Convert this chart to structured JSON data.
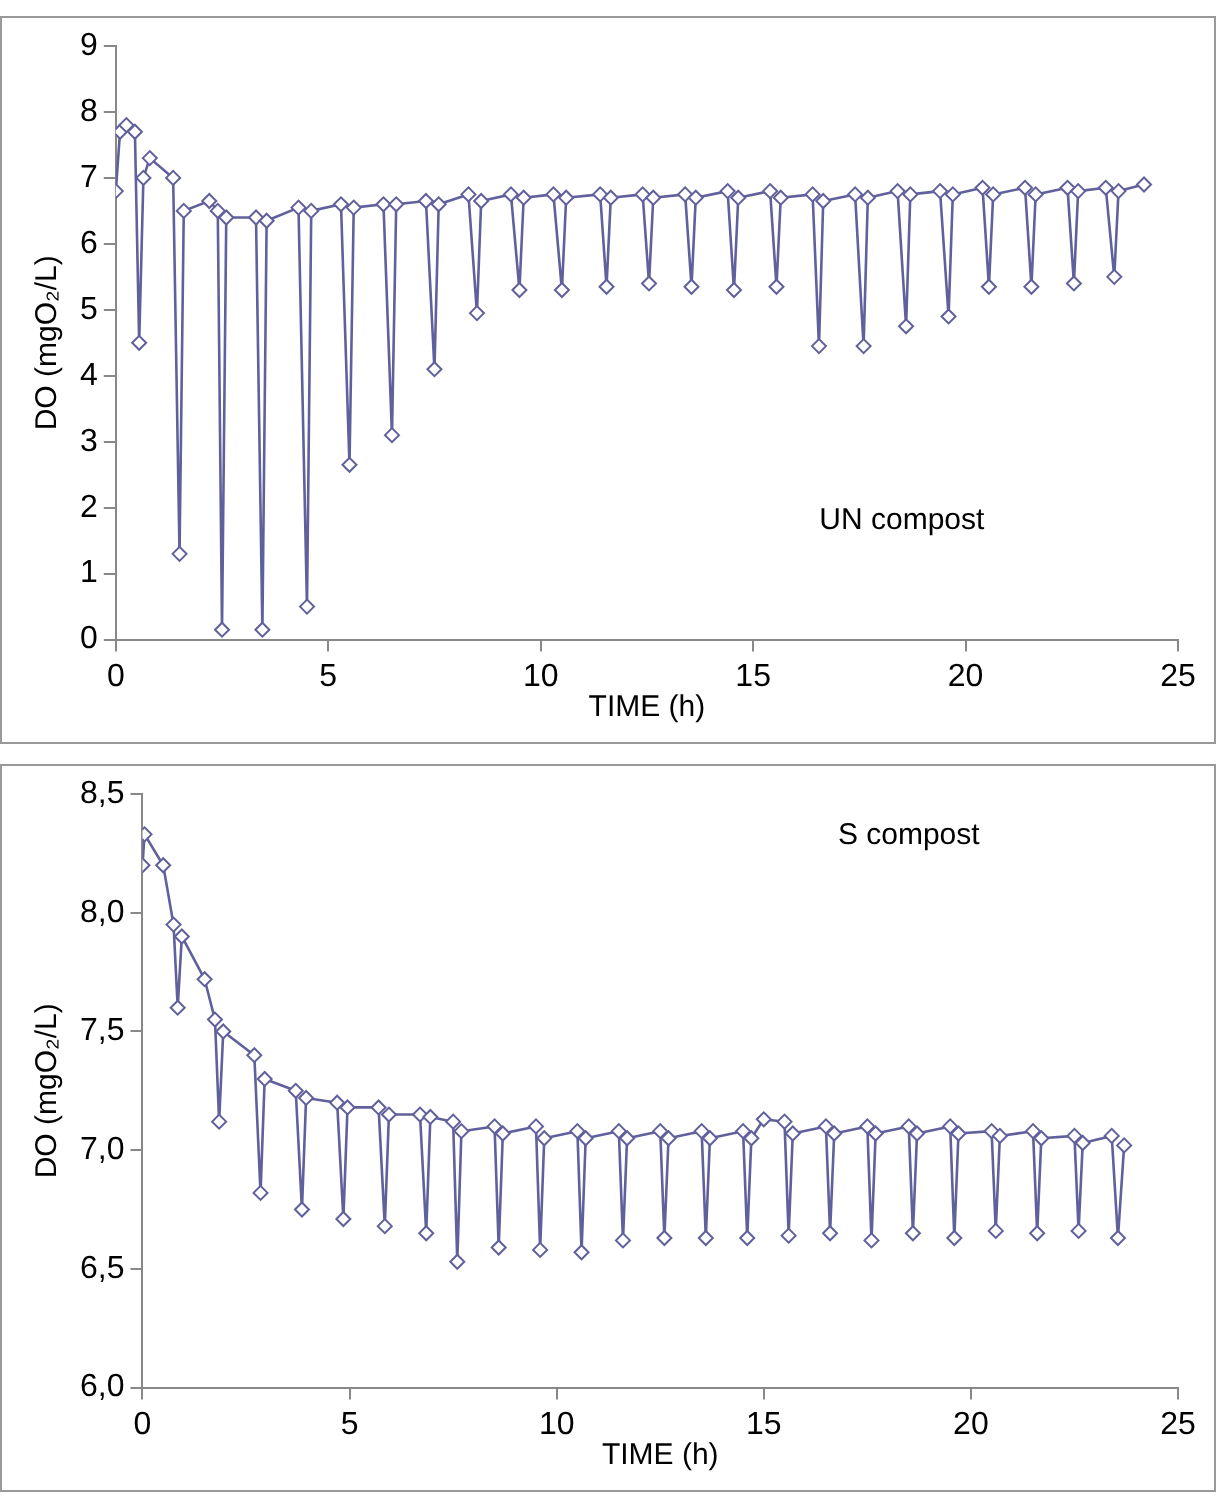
{
  "chart_data": [
    {
      "type": "line",
      "xlabel": "TIME (h)",
      "ylabel": "DO (mgO₂/L)",
      "xlim": [
        0,
        25
      ],
      "xticks": [
        0,
        5,
        10,
        15,
        20,
        25
      ],
      "ylim": [
        0,
        9
      ],
      "yticks": [
        0,
        1,
        2,
        3,
        4,
        5,
        6,
        7,
        8,
        9
      ],
      "grid": false,
      "legend": false,
      "marker": "diamond",
      "line_style": "solid",
      "annotations": [
        "UN compost"
      ],
      "series": [
        {
          "color": "#60609c",
          "x": [
            0,
            0.1,
            0.25,
            0.45,
            0.55,
            0.65,
            0.8,
            1.35,
            1.5,
            1.6,
            2.2,
            2.4,
            2.5,
            2.6,
            3.3,
            3.45,
            3.55,
            4.3,
            4.5,
            4.6,
            5.3,
            5.5,
            5.6,
            6.3,
            6.5,
            6.6,
            7.3,
            7.5,
            7.6,
            8.3,
            8.5,
            8.6,
            9.3,
            9.5,
            9.6,
            10.3,
            10.5,
            10.6,
            11.4,
            11.55,
            11.65,
            12.4,
            12.55,
            12.65,
            13.4,
            13.55,
            13.65,
            14.4,
            14.55,
            14.65,
            15.4,
            15.55,
            15.65,
            16.4,
            16.55,
            16.65,
            17.4,
            17.6,
            17.7,
            18.4,
            18.6,
            18.7,
            19.4,
            19.6,
            19.7,
            20.4,
            20.55,
            20.65,
            21.4,
            21.55,
            21.65,
            22.4,
            22.55,
            22.65,
            23.3,
            23.5,
            23.6,
            24.2
          ],
          "values": [
            6.8,
            7.7,
            7.8,
            7.7,
            4.5,
            7.0,
            7.3,
            7.0,
            1.3,
            6.5,
            6.65,
            6.5,
            0.15,
            6.4,
            6.4,
            0.15,
            6.35,
            6.55,
            0.5,
            6.5,
            6.6,
            2.65,
            6.55,
            6.6,
            3.1,
            6.6,
            6.65,
            4.1,
            6.6,
            6.75,
            4.95,
            6.65,
            6.75,
            5.3,
            6.7,
            6.75,
            5.3,
            6.7,
            6.75,
            5.35,
            6.7,
            6.75,
            5.4,
            6.7,
            6.75,
            5.35,
            6.7,
            6.8,
            5.3,
            6.7,
            6.8,
            5.35,
            6.7,
            6.75,
            4.45,
            6.65,
            6.75,
            4.45,
            6.7,
            6.8,
            4.75,
            6.75,
            6.8,
            4.9,
            6.75,
            6.85,
            5.35,
            6.75,
            6.85,
            5.35,
            6.75,
            6.85,
            5.4,
            6.8,
            6.85,
            5.5,
            6.8,
            6.9
          ]
        }
      ]
    },
    {
      "type": "line",
      "xlabel": "TIME (h)",
      "ylabel": "DO (mgO₂/L)",
      "xlim": [
        0,
        25
      ],
      "xticks": [
        0,
        5,
        10,
        15,
        20,
        25
      ],
      "ylim": [
        6,
        8.5
      ],
      "yticks": [
        {
          "value": 6,
          "label": "6,0"
        },
        {
          "value": 6.5,
          "label": "6,5"
        },
        {
          "value": 7,
          "label": "7,0"
        },
        {
          "value": 7.5,
          "label": "7,5"
        },
        {
          "value": 8,
          "label": "8,0"
        },
        {
          "value": 8.5,
          "label": "8,5"
        }
      ],
      "grid": false,
      "legend": false,
      "marker": "diamond",
      "line_style": "solid",
      "annotations": [
        "S compost"
      ],
      "series": [
        {
          "color": "#60609c",
          "x": [
            0,
            0.05,
            0.5,
            0.75,
            0.85,
            0.95,
            1.5,
            1.75,
            1.85,
            1.95,
            2.7,
            2.85,
            2.95,
            3.7,
            3.85,
            3.95,
            4.7,
            4.85,
            4.95,
            5.7,
            5.85,
            5.95,
            6.7,
            6.85,
            6.95,
            7.5,
            7.6,
            7.7,
            8.5,
            8.6,
            8.7,
            9.5,
            9.6,
            9.7,
            10.5,
            10.6,
            10.7,
            11.5,
            11.6,
            11.7,
            12.5,
            12.6,
            12.7,
            13.5,
            13.6,
            13.7,
            14.5,
            14.6,
            14.7,
            15.0,
            15.5,
            15.6,
            15.7,
            16.5,
            16.6,
            16.7,
            17.5,
            17.6,
            17.7,
            18.5,
            18.6,
            18.7,
            19.5,
            19.6,
            19.7,
            20.5,
            20.6,
            20.7,
            21.5,
            21.6,
            21.7,
            22.5,
            22.6,
            22.7,
            23.4,
            23.55,
            23.7
          ],
          "values": [
            8.2,
            8.33,
            8.2,
            7.95,
            7.6,
            7.9,
            7.72,
            7.55,
            7.12,
            7.5,
            7.4,
            6.82,
            7.3,
            7.25,
            6.75,
            7.22,
            7.2,
            6.71,
            7.18,
            7.18,
            6.68,
            7.15,
            7.15,
            6.65,
            7.14,
            7.12,
            6.53,
            7.08,
            7.1,
            6.59,
            7.07,
            7.1,
            6.58,
            7.05,
            7.08,
            6.57,
            7.05,
            7.08,
            6.62,
            7.05,
            7.08,
            6.63,
            7.05,
            7.08,
            6.63,
            7.05,
            7.08,
            6.63,
            7.05,
            7.13,
            7.12,
            6.64,
            7.07,
            7.1,
            6.65,
            7.07,
            7.1,
            6.62,
            7.07,
            7.1,
            6.65,
            7.07,
            7.1,
            6.63,
            7.07,
            7.08,
            6.66,
            7.06,
            7.08,
            6.65,
            7.05,
            7.06,
            6.66,
            7.03,
            7.06,
            6.63,
            7.02
          ]
        }
      ]
    }
  ]
}
